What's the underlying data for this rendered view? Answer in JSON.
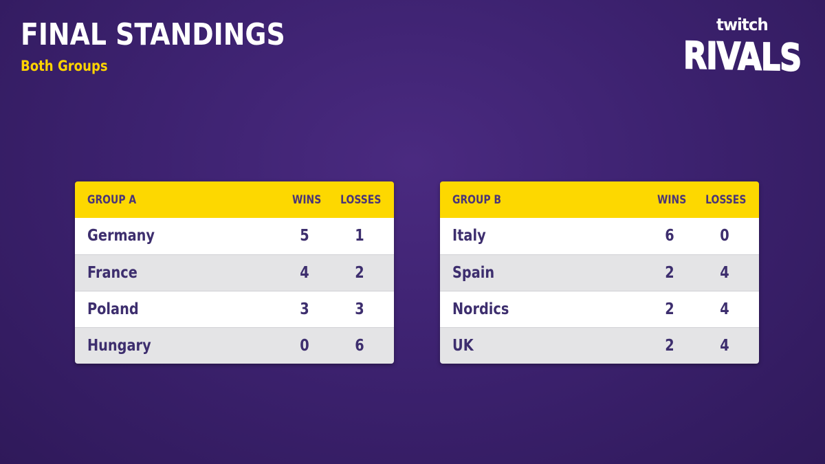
{
  "header": {
    "title": "FINAL STANDINGS",
    "subtitle": "Both Groups"
  },
  "logo": {
    "top_text": "twitch",
    "main_text": "RIVALS"
  },
  "colors": {
    "background": "#3d2270",
    "accent_yellow": "#fdd800",
    "table_text": "#3d2e6e",
    "row_alt": "#e4e4e6"
  },
  "groups": [
    {
      "name": "GROUP A",
      "wins_label": "WINS",
      "losses_label": "LOSSES",
      "rows": [
        {
          "team": "Germany",
          "wins": "5",
          "losses": "1"
        },
        {
          "team": "France",
          "wins": "4",
          "losses": "2"
        },
        {
          "team": "Poland",
          "wins": "3",
          "losses": "3"
        },
        {
          "team": "Hungary",
          "wins": "0",
          "losses": "6"
        }
      ]
    },
    {
      "name": "GROUP B",
      "wins_label": "WINS",
      "losses_label": "LOSSES",
      "rows": [
        {
          "team": "Italy",
          "wins": "6",
          "losses": "0"
        },
        {
          "team": "Spain",
          "wins": "2",
          "losses": "4"
        },
        {
          "team": "Nordics",
          "wins": "2",
          "losses": "4"
        },
        {
          "team": "UK",
          "wins": "2",
          "losses": "4"
        }
      ]
    }
  ]
}
